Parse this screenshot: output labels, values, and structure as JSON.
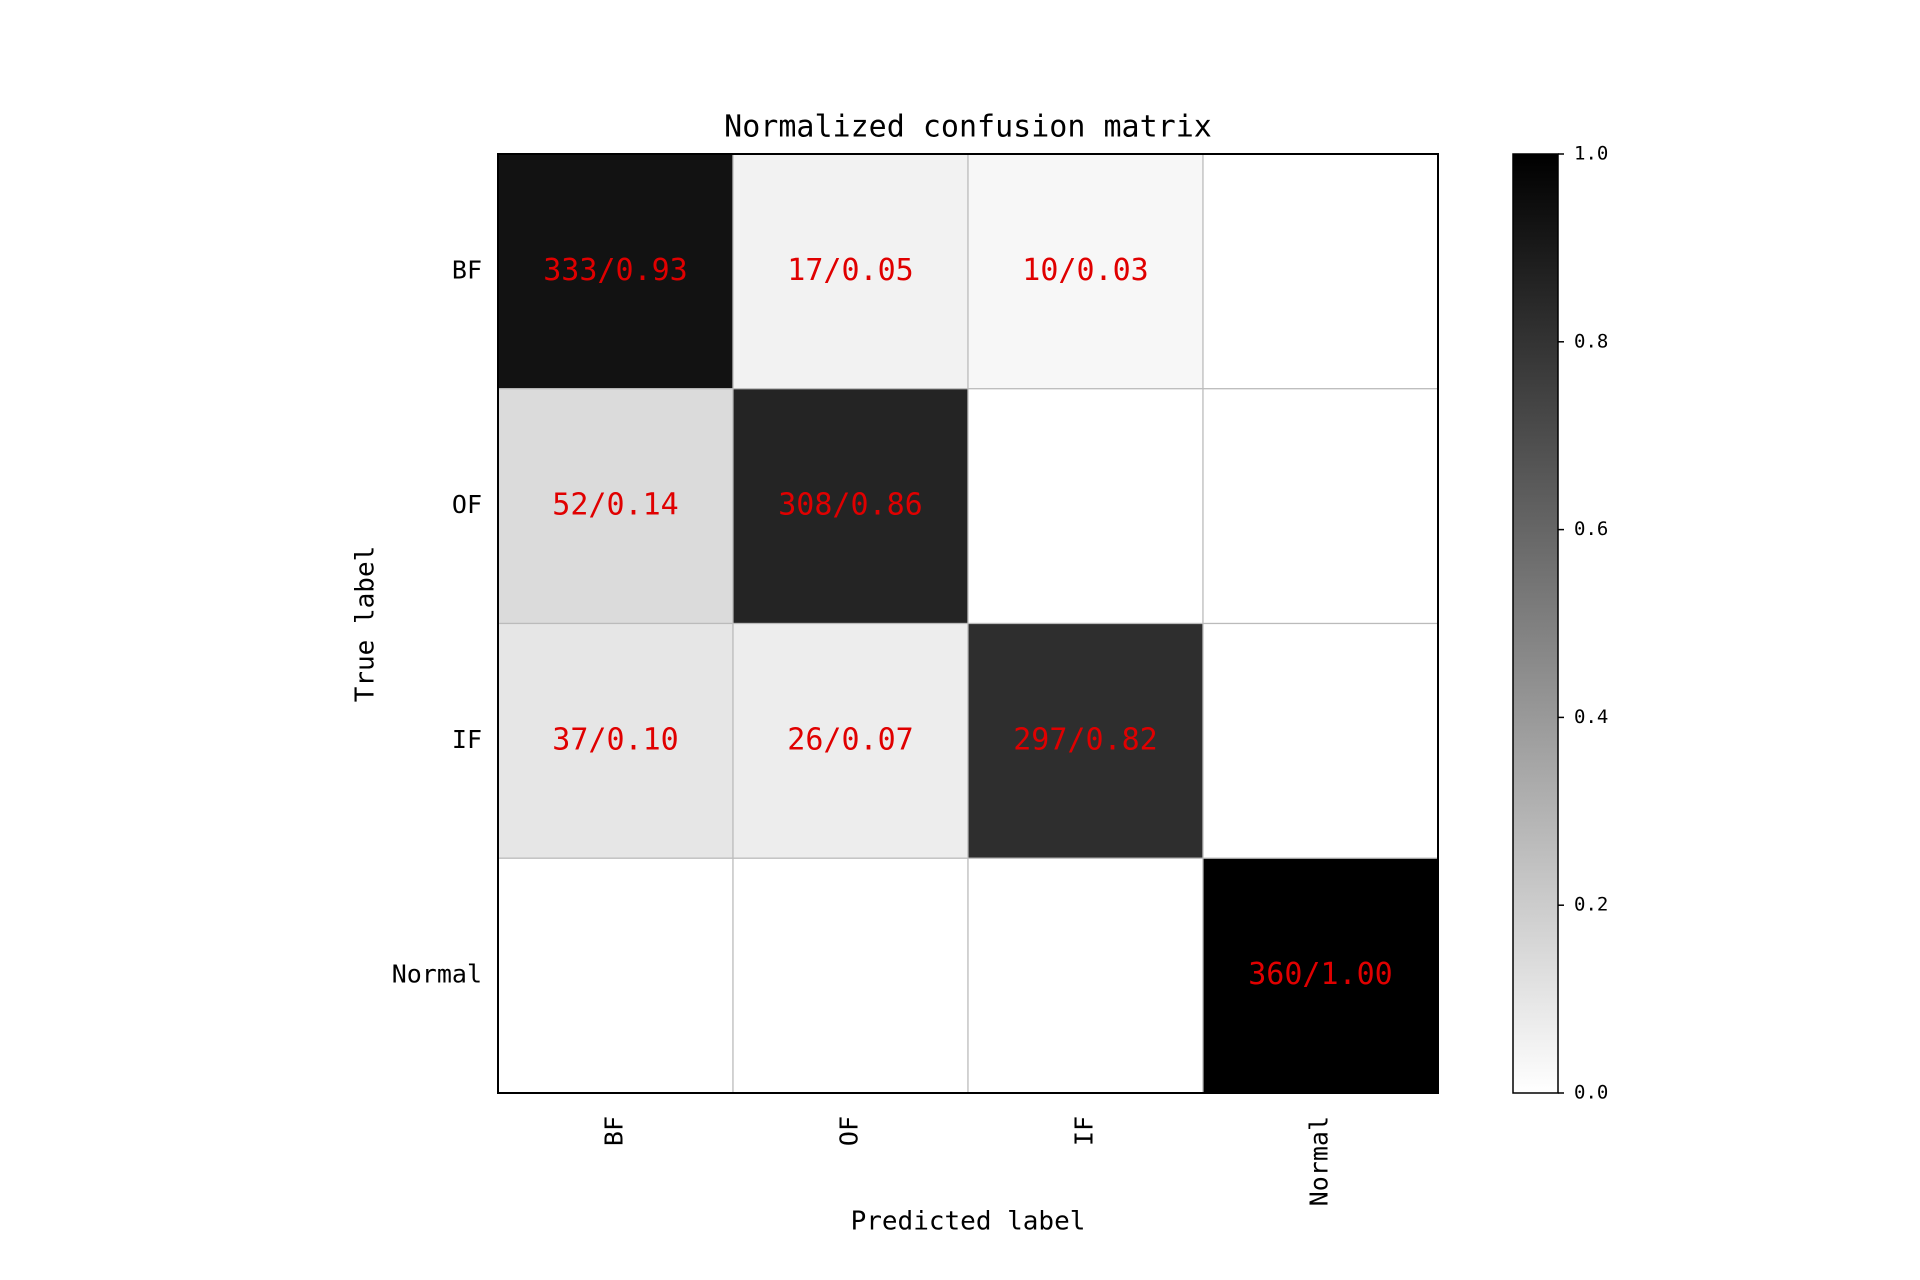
{
  "chart_data": {
    "type": "heatmap",
    "title": "Normalized confusion matrix",
    "x_label": "Predicted label",
    "y_label": "True label",
    "x_categories": [
      "BF",
      "OF",
      "IF",
      "Normal"
    ],
    "y_categories": [
      "BF",
      "OF",
      "IF",
      "Normal"
    ],
    "values": [
      [
        0.93,
        0.05,
        0.03,
        0
      ],
      [
        0.14,
        0.86,
        0,
        0
      ],
      [
        0.1,
        0.07,
        0.82,
        0
      ],
      [
        0,
        0,
        0,
        1.0
      ]
    ],
    "value_labels": [
      [
        "333/0.93",
        "17/0.05",
        "10/0.03",
        null
      ],
      [
        "52/0.14",
        "308/0.86",
        null,
        null
      ],
      [
        "37/0.10",
        "26/0.07",
        "297/0.82",
        null
      ],
      [
        null,
        null,
        null,
        "360/1.00"
      ]
    ],
    "label_color": "#e00000",
    "colorbar": {
      "lim": [
        0,
        1
      ],
      "ticks": [
        {
          "value": 0,
          "label": "0.0"
        },
        0.2,
        0.4,
        0.6,
        0.8,
        {
          "value": 1,
          "label": "1.0"
        }
      ]
    }
  }
}
